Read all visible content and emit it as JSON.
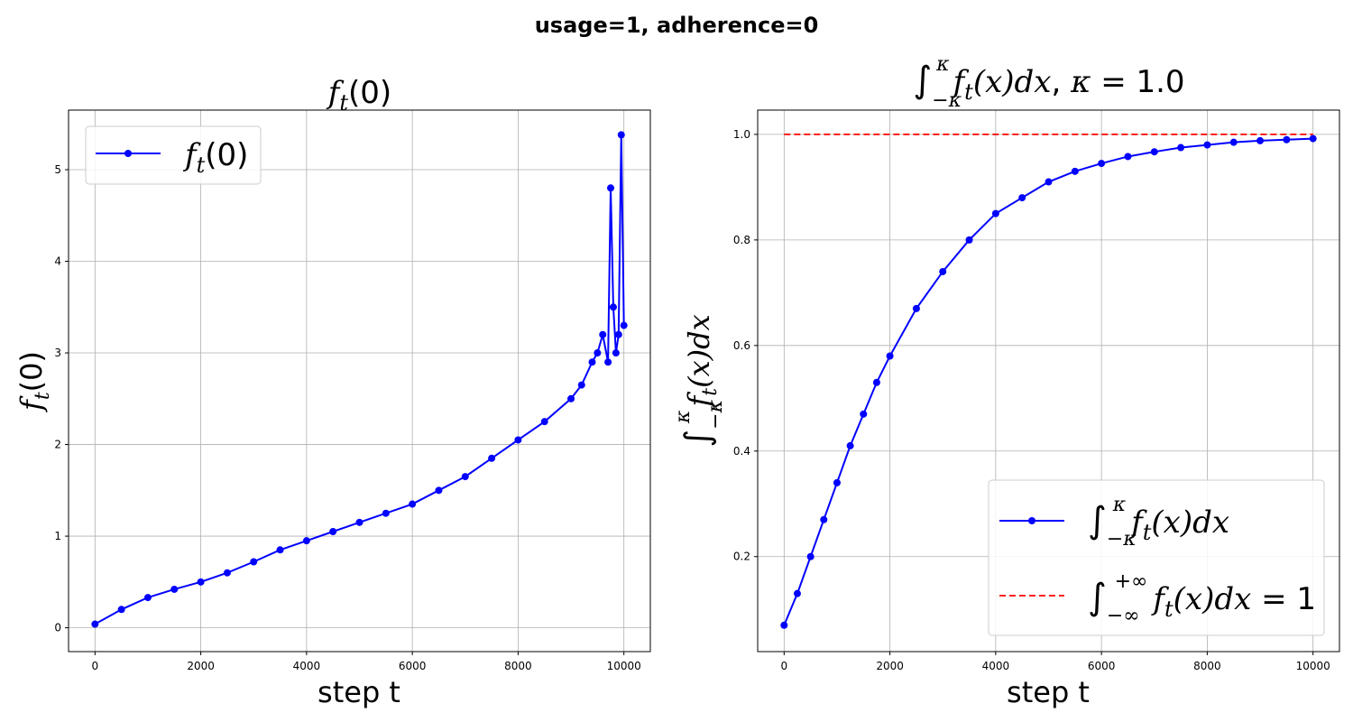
{
  "figure": {
    "suptitle": "usage=1, adherence=0"
  },
  "chart_data": [
    {
      "type": "line",
      "title": "f_t(0)",
      "xlabel": "step t",
      "ylabel": "f_t(0)",
      "xlim": [
        -500,
        10500
      ],
      "ylim": [
        -0.26,
        5.65
      ],
      "xticks": [
        0,
        2000,
        4000,
        6000,
        8000,
        10000
      ],
      "yticks": [
        0,
        1,
        2,
        3,
        4,
        5
      ],
      "grid": true,
      "legend_position": "upper-left",
      "series": [
        {
          "name": "f_t(0)",
          "color": "#0000ff",
          "marker": "circle",
          "x": [
            0,
            500,
            1000,
            1500,
            2000,
            2500,
            3000,
            3500,
            4000,
            4500,
            5000,
            5500,
            6000,
            6500,
            7000,
            7500,
            8000,
            8500,
            9000,
            9200,
            9400,
            9500,
            9600,
            9700,
            9750,
            9800,
            9850,
            9900,
            9950,
            10000
          ],
          "values": [
            0.04,
            0.2,
            0.33,
            0.42,
            0.5,
            0.6,
            0.72,
            0.85,
            0.95,
            1.05,
            1.15,
            1.25,
            1.35,
            1.5,
            1.65,
            1.85,
            2.05,
            2.25,
            2.5,
            2.65,
            2.9,
            3.0,
            3.2,
            2.9,
            4.8,
            3.5,
            3.0,
            3.2,
            5.38,
            3.3
          ]
        }
      ]
    },
    {
      "type": "line",
      "title": "∫_{-κ}^{κ} f_t(x)dx, κ = 1.0",
      "xlabel": "step t",
      "ylabel": "∫_{-κ}^{κ} f_t(x)dx",
      "xlim": [
        -500,
        10500
      ],
      "ylim": [
        0.02,
        1.046
      ],
      "xticks": [
        0,
        2000,
        4000,
        6000,
        8000,
        10000
      ],
      "yticks": [
        0.2,
        0.4,
        0.6,
        0.8,
        1.0
      ],
      "grid": true,
      "legend_position": "lower-right",
      "series": [
        {
          "name": "∫_{-κ}^{κ} f_t(x)dx",
          "color": "#0000ff",
          "marker": "circle",
          "x": [
            0,
            250,
            500,
            750,
            1000,
            1250,
            1500,
            1750,
            2000,
            2500,
            3000,
            3500,
            4000,
            4500,
            5000,
            5500,
            6000,
            6500,
            7000,
            7500,
            8000,
            8500,
            9000,
            9500,
            10000
          ],
          "values": [
            0.07,
            0.13,
            0.2,
            0.27,
            0.34,
            0.41,
            0.47,
            0.53,
            0.58,
            0.67,
            0.74,
            0.8,
            0.85,
            0.88,
            0.91,
            0.93,
            0.945,
            0.958,
            0.967,
            0.975,
            0.98,
            0.985,
            0.988,
            0.99,
            0.992
          ]
        },
        {
          "name": "∫_{-∞}^{+∞} f_t(x)dx = 1",
          "color": "#ff0000",
          "line_style": "dashed",
          "x": [
            0,
            10000
          ],
          "values": [
            1.0,
            1.0
          ]
        }
      ]
    }
  ]
}
